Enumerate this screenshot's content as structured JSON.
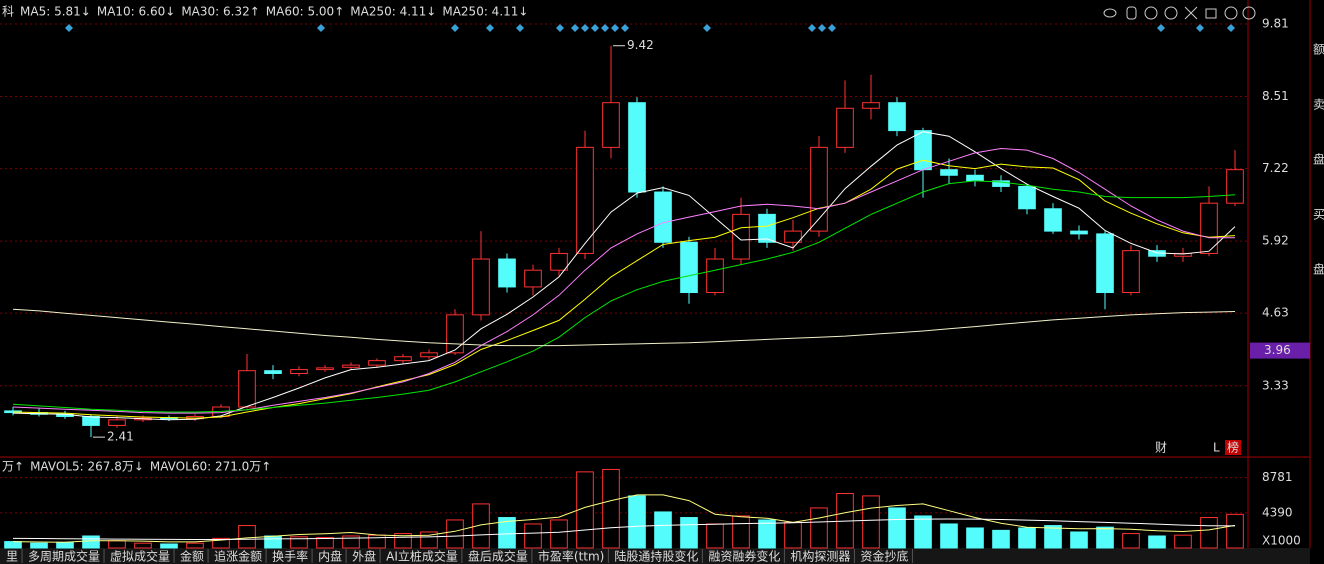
{
  "chart_data": [
    {
      "type": "candlestick",
      "legend_prefix": "科",
      "open": [
        2.88,
        2.85,
        2.82,
        2.78,
        2.62,
        2.72,
        2.76,
        2.74,
        2.78,
        2.95,
        3.6,
        3.55,
        3.62,
        3.66,
        3.7,
        3.78,
        3.85,
        3.92,
        4.6,
        5.6,
        5.1,
        5.4,
        5.7,
        7.6,
        8.4,
        6.8,
        5.9,
        5.0,
        5.6,
        6.4,
        5.9,
        6.1,
        7.6,
        8.3,
        8.4,
        7.9,
        7.2,
        7.1,
        7.0,
        6.9,
        6.5,
        6.1,
        6.05,
        5.0,
        5.75,
        5.65,
        5.7,
        6.6
      ],
      "high": [
        2.95,
        2.92,
        2.88,
        2.82,
        2.78,
        2.8,
        2.8,
        2.82,
        3.0,
        3.9,
        3.7,
        3.68,
        3.7,
        3.75,
        3.82,
        3.9,
        3.98,
        4.7,
        6.1,
        5.7,
        5.5,
        5.8,
        7.9,
        9.42,
        8.5,
        6.9,
        6.0,
        5.8,
        6.7,
        6.5,
        6.3,
        7.8,
        8.8,
        8.9,
        8.5,
        7.95,
        7.4,
        7.2,
        7.1,
        6.95,
        6.6,
        6.2,
        6.1,
        5.85,
        5.85,
        5.8,
        6.9,
        7.55
      ],
      "low": [
        2.8,
        2.78,
        2.74,
        2.41,
        2.58,
        2.68,
        2.7,
        2.7,
        2.75,
        2.92,
        3.45,
        3.5,
        3.58,
        3.62,
        3.65,
        3.72,
        3.8,
        3.88,
        4.5,
        5.0,
        4.95,
        5.3,
        5.6,
        7.4,
        6.7,
        5.8,
        4.8,
        4.95,
        5.5,
        5.8,
        5.75,
        6.0,
        7.5,
        8.1,
        7.8,
        6.7,
        6.95,
        6.9,
        6.8,
        6.4,
        6.05,
        5.95,
        4.7,
        4.95,
        5.55,
        5.55,
        5.65,
        6.55
      ],
      "close": [
        2.85,
        2.82,
        2.78,
        2.62,
        2.72,
        2.75,
        2.74,
        2.78,
        2.95,
        3.6,
        3.55,
        3.62,
        3.65,
        3.7,
        3.78,
        3.85,
        3.92,
        4.6,
        5.6,
        5.1,
        5.4,
        5.7,
        7.6,
        8.4,
        6.8,
        5.9,
        5.0,
        5.6,
        6.4,
        5.9,
        6.1,
        7.6,
        8.3,
        8.4,
        7.9,
        7.2,
        7.1,
        7.0,
        6.9,
        6.5,
        6.1,
        6.05,
        5.0,
        5.75,
        5.65,
        5.7,
        6.6,
        7.2
      ],
      "up_color": "#ff3232",
      "down_color": "#54fcfc",
      "ylim": [
        2.09,
        10.06
      ],
      "yticks": [
        9.81,
        8.51,
        7.22,
        5.92,
        4.63,
        3.33
      ],
      "grid": true,
      "price_marker": 3.96,
      "high_label": 9.42,
      "low_label": 2.41,
      "series": [
        {
          "name": "MA5: 5.81↓",
          "color": "#ffffff",
          "values": [
            2.84,
            2.83,
            2.82,
            2.77,
            2.76,
            2.74,
            2.72,
            2.73,
            2.79,
            2.96,
            3.12,
            3.29,
            3.47,
            3.62,
            3.66,
            3.72,
            3.78,
            3.97,
            4.35,
            4.61,
            4.92,
            5.28,
            5.88,
            6.44,
            6.78,
            6.88,
            6.74,
            6.34,
            5.94,
            5.96,
            5.8,
            6.32,
            6.86,
            7.26,
            7.64,
            7.88,
            7.8,
            7.52,
            7.22,
            6.94,
            6.72,
            6.51,
            6.11,
            5.88,
            5.71,
            5.69,
            5.74,
            6.18
          ]
        },
        {
          "name": "MA10: 6.60↓",
          "color": "#ffff00",
          "values": [
            2.86,
            2.85,
            2.84,
            2.81,
            2.79,
            2.77,
            2.76,
            2.75,
            2.77,
            2.86,
            2.94,
            3.01,
            3.1,
            3.19,
            3.31,
            3.42,
            3.53,
            3.71,
            3.98,
            4.14,
            4.32,
            4.5,
            4.88,
            5.28,
            5.57,
            5.86,
            5.93,
            5.99,
            6.16,
            6.19,
            6.34,
            6.51,
            6.6,
            6.85,
            7.21,
            7.37,
            7.27,
            7.22,
            7.3,
            7.25,
            7.23,
            7.02,
            6.64,
            6.42,
            6.23,
            6.07,
            5.99,
            6.02
          ]
        },
        {
          "name": "MA30: 6.32↑",
          "color": "#ff80ff",
          "values": [
            2.95,
            2.93,
            2.91,
            2.89,
            2.87,
            2.85,
            2.84,
            2.84,
            2.85,
            2.9,
            2.98,
            3.05,
            3.12,
            3.2,
            3.3,
            3.4,
            3.55,
            3.75,
            4.05,
            4.3,
            4.6,
            4.95,
            5.4,
            5.8,
            6.05,
            6.25,
            6.35,
            6.45,
            6.55,
            6.58,
            6.55,
            6.5,
            6.6,
            6.8,
            7.0,
            7.2,
            7.35,
            7.5,
            7.58,
            7.55,
            7.4,
            7.15,
            6.85,
            6.55,
            6.3,
            6.1,
            5.98,
            5.98
          ]
        },
        {
          "name": "MA60: 5.00↑",
          "color": "#00e600",
          "values": [
            3.0,
            2.97,
            2.94,
            2.91,
            2.89,
            2.87,
            2.86,
            2.86,
            2.87,
            2.9,
            2.94,
            2.98,
            3.02,
            3.07,
            3.12,
            3.18,
            3.25,
            3.4,
            3.58,
            3.76,
            3.95,
            4.2,
            4.55,
            4.85,
            5.05,
            5.2,
            5.3,
            5.4,
            5.5,
            5.6,
            5.72,
            5.9,
            6.15,
            6.4,
            6.6,
            6.8,
            6.95,
            7.0,
            6.98,
            6.92,
            6.85,
            6.8,
            6.72,
            6.7,
            6.7,
            6.7,
            6.72,
            6.75
          ]
        },
        {
          "name": "MA250: 4.11↓",
          "color": "#f0f0c8",
          "legend_color": "#00c8ff",
          "values": [
            4.7,
            4.67,
            4.63,
            4.59,
            4.55,
            4.51,
            4.47,
            4.43,
            4.39,
            4.35,
            4.31,
            4.27,
            4.23,
            4.2,
            4.16,
            4.13,
            4.1,
            4.08,
            4.06,
            4.05,
            4.05,
            4.05,
            4.06,
            4.07,
            4.08,
            4.09,
            4.1,
            4.12,
            4.14,
            4.16,
            4.18,
            4.2,
            4.22,
            4.25,
            4.28,
            4.31,
            4.35,
            4.39,
            4.43,
            4.47,
            4.51,
            4.54,
            4.57,
            4.6,
            4.62,
            4.64,
            4.65,
            4.66
          ]
        }
      ],
      "extra_legend": "MA250: 4.11↓",
      "event_markers": [
        "财",
        "L",
        "榜"
      ]
    },
    {
      "type": "bar",
      "legend_prefix": "万↑",
      "values": [
        800,
        600,
        700,
        1500,
        900,
        600,
        500,
        600,
        1200,
        2800,
        1500,
        1400,
        1300,
        1500,
        1600,
        1800,
        2000,
        3500,
        5500,
        3800,
        3000,
        3500,
        9500,
        9800,
        6500,
        4500,
        3800,
        3000,
        4000,
        3500,
        3200,
        5000,
        6800,
        6500,
        5000,
        4000,
        3000,
        2500,
        2200,
        2500,
        2800,
        2000,
        2600,
        1800,
        1500,
        1600,
        3800,
        4200
      ],
      "ylim": [
        0,
        10731
      ],
      "yticks": [
        8781,
        4390
      ],
      "unit_label": "X1000",
      "series": [
        {
          "name": "MAVOL5: 267.8万↓",
          "color": "#ffff80",
          "values": [
            800,
            750,
            720,
            900,
            900,
            860,
            760,
            760,
            980,
            1260,
            1460,
            1680,
            1780,
            1940,
            1620,
            1520,
            1600,
            2080,
            2880,
            3320,
            3560,
            3860,
            5060,
            5920,
            6620,
            6620,
            5920,
            4220,
            3900,
            3700,
            3200,
            3740,
            4400,
            4980,
            5300,
            5500,
            4660,
            3800,
            3100,
            2600,
            2500,
            2400,
            2420,
            2340,
            2140,
            2060,
            2260,
            2820
          ]
        },
        {
          "name": "MAVOL60: 271.0万↑",
          "color": "#ffffff",
          "values": [
            1200,
            1180,
            1150,
            1130,
            1110,
            1090,
            1070,
            1060,
            1060,
            1100,
            1130,
            1160,
            1190,
            1230,
            1280,
            1330,
            1390,
            1480,
            1640,
            1760,
            1860,
            1970,
            2250,
            2530,
            2710,
            2820,
            2900,
            2960,
            3040,
            3100,
            3150,
            3240,
            3360,
            3470,
            3550,
            3600,
            3620,
            3610,
            3560,
            3480,
            3400,
            3300,
            3200,
            3100,
            2980,
            2860,
            2780,
            2760
          ]
        }
      ]
    }
  ],
  "tabs": [
    "里",
    "多周期成交量",
    "虚拟成交量",
    "金额",
    "追涨金额",
    "换手率",
    "内盘",
    "外盘",
    "AI立桩成交量",
    "盘后成交量",
    "市盈率(ttm)",
    "陆股通持股变化",
    "融资融券变化",
    "机构探测器",
    "资金抄底"
  ],
  "side_panel": [
    "额",
    "卖",
    "盘",
    "买",
    "盘"
  ]
}
